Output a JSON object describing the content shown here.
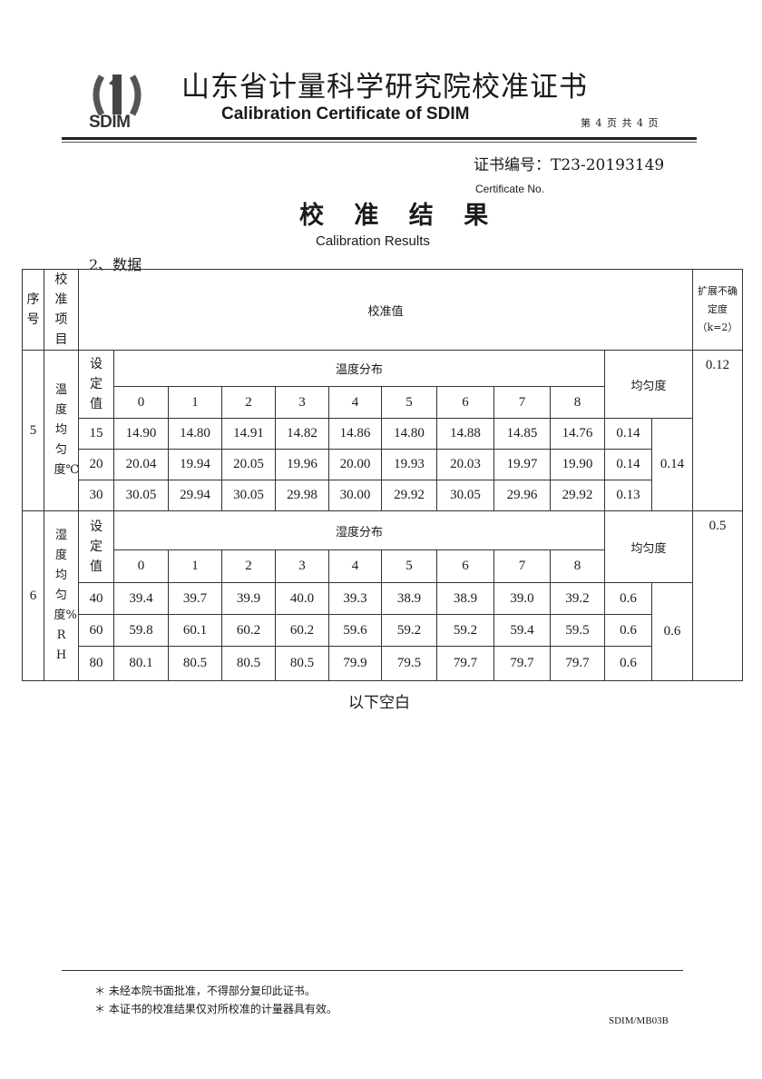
{
  "header": {
    "logo_text": "SDIM",
    "title_cn": "山东省计量科学研究院校准证书",
    "title_en": "Calibration Certificate of SDIM",
    "page_info": "第 4 页 共 4 页",
    "certificate_no": "证书编号：T23-20193149",
    "certificate_no_en": "Certificate No."
  },
  "results": {
    "title_cn": "校 准 结 果",
    "title_en": "Calibration Results",
    "section": "2、数据"
  },
  "table": {
    "headers": {
      "seq": "序号",
      "item": "校准项目",
      "value": "校准值",
      "uncertainty": "扩展不确定度（k=2）"
    },
    "setpoint_label": "设定值",
    "uniformity_label": "均匀度",
    "points": [
      "0",
      "1",
      "2",
      "3",
      "4",
      "5",
      "6",
      "7",
      "8"
    ],
    "groups": [
      {
        "seq": "5",
        "item": "温度均匀度℃",
        "distribution_label": "温度分布",
        "rows": [
          {
            "set": "15",
            "values": [
              "14.90",
              "14.80",
              "14.91",
              "14.82",
              "14.86",
              "14.80",
              "14.88",
              "14.85",
              "14.76"
            ],
            "uniformity": "0.14"
          },
          {
            "set": "20",
            "values": [
              "20.04",
              "19.94",
              "20.05",
              "19.96",
              "20.00",
              "19.93",
              "20.03",
              "19.97",
              "19.90"
            ],
            "uniformity": "0.14"
          },
          {
            "set": "30",
            "values": [
              "30.05",
              "29.94",
              "30.05",
              "29.98",
              "30.00",
              "29.92",
              "30.05",
              "29.96",
              "29.92"
            ],
            "uniformity": "0.13"
          }
        ],
        "overall_uniformity": "0.14",
        "uncertainty": "0.12"
      },
      {
        "seq": "6",
        "item": "湿度均匀度%RH",
        "distribution_label": "湿度分布",
        "rows": [
          {
            "set": "40",
            "values": [
              "39.4",
              "39.7",
              "39.9",
              "40.0",
              "39.3",
              "38.9",
              "38.9",
              "39.0",
              "39.2"
            ],
            "uniformity": "0.6"
          },
          {
            "set": "60",
            "values": [
              "59.8",
              "60.1",
              "60.2",
              "60.2",
              "59.6",
              "59.2",
              "59.2",
              "59.4",
              "59.5"
            ],
            "uniformity": "0.6"
          },
          {
            "set": "80",
            "values": [
              "80.1",
              "80.5",
              "80.5",
              "80.5",
              "79.9",
              "79.5",
              "79.7",
              "79.7",
              "79.7"
            ],
            "uniformity": "0.6"
          }
        ],
        "overall_uniformity": "0.6",
        "uncertainty": "0.5"
      }
    ]
  },
  "end_note": "以下空白",
  "footer": {
    "note1": "＊ 未经本院书面批准，不得部分复印此证书。",
    "note2": "＊ 本证书的校准结果仅对所校准的计量器具有效。",
    "form_code": "SDIM/MB03B"
  }
}
